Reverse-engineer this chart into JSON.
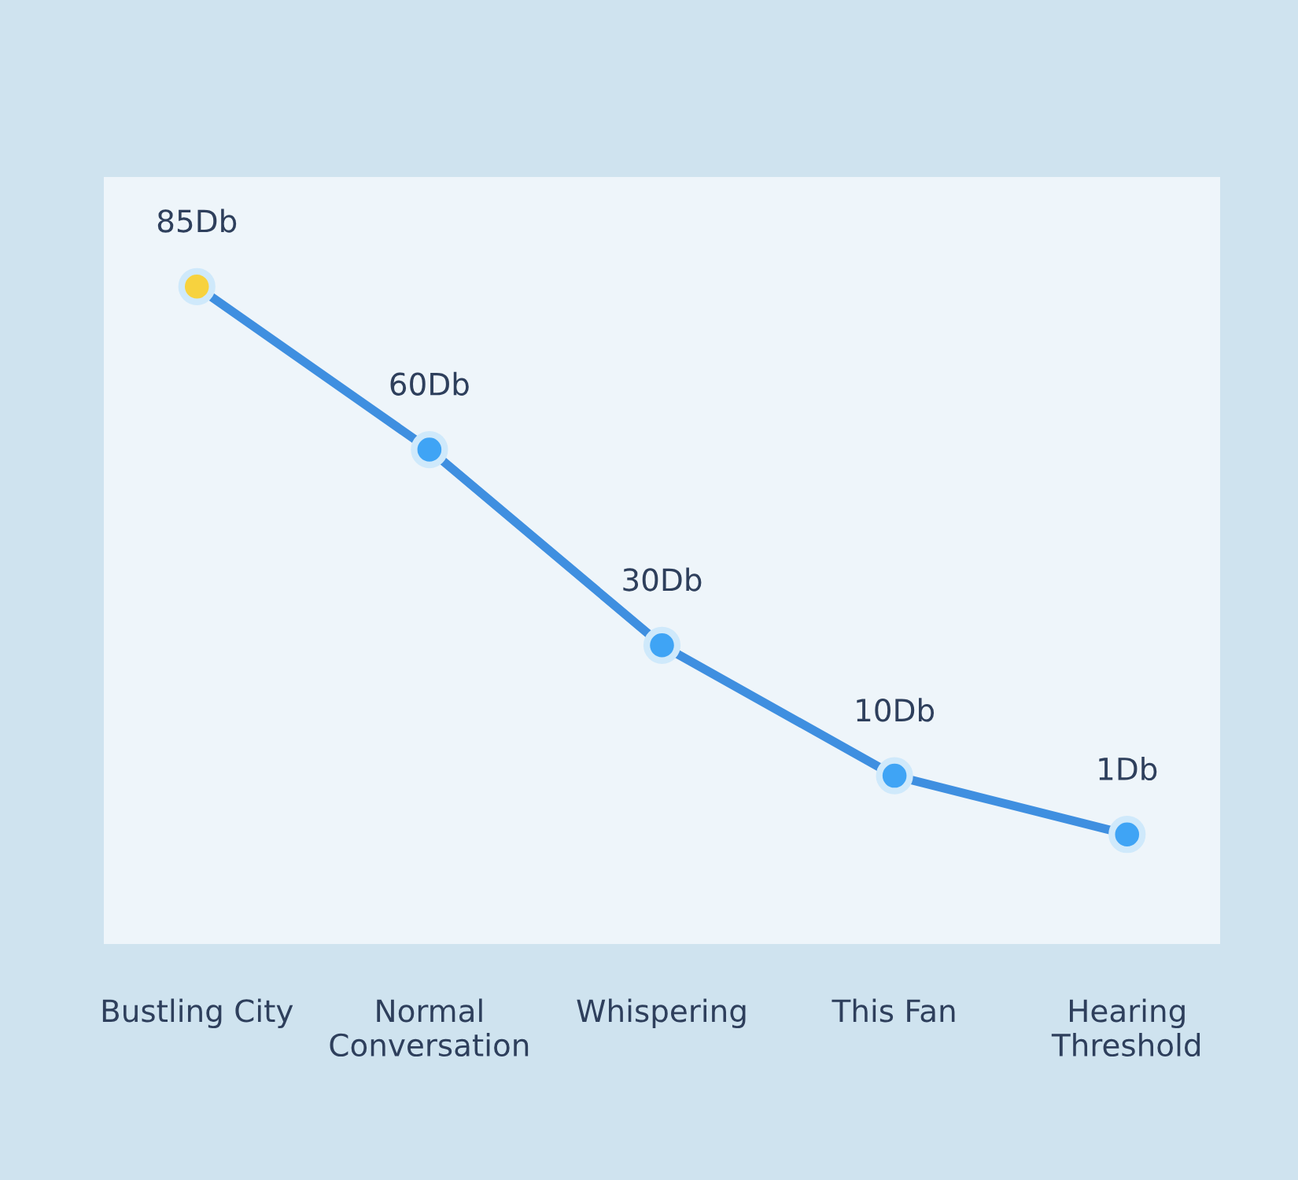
{
  "chart_data": {
    "type": "line",
    "categories": [
      "Bustling City",
      "Normal\nConversation",
      "Whispering",
      "This Fan",
      "Hearing\nThreshold"
    ],
    "series": [
      {
        "color": "#3f8fe0",
        "colors": [
          "#f7d23e",
          "#3fa4f5",
          "#3fa4f5",
          "#3fa4f5",
          "#3fa4f5"
        ],
        "values": [
          85,
          60,
          30,
          10,
          1
        ],
        "value_labels": [
          "85Db",
          "60Db",
          "30Db",
          "10Db",
          "1Db"
        ]
      }
    ],
    "marker": "circle",
    "line_style": "solid",
    "grid": false,
    "legend": false,
    "tick_labels": "x"
  }
}
